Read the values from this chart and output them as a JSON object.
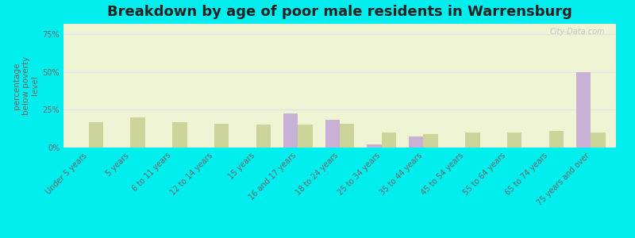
{
  "title": "Breakdown by age of poor male residents in Warrensburg",
  "ylabel": "percentage\nbelow poverty\nlevel",
  "categories": [
    "Under 5 years",
    "5 years",
    "6 to 11 years",
    "12 to 14 years",
    "15 years",
    "16 and 17 years",
    "18 to 24 years",
    "25 to 34 years",
    "35 to 44 years",
    "45 to 54 years",
    "55 to 64 years",
    "65 to 74 years",
    "75 years and over"
  ],
  "warrensburg": [
    0,
    0,
    0,
    0,
    0,
    22.5,
    18.5,
    2.0,
    7.5,
    0,
    0,
    0,
    50.0
  ],
  "illinois": [
    17.0,
    20.0,
    17.0,
    16.0,
    15.0,
    15.0,
    16.0,
    10.0,
    9.0,
    10.0,
    10.0,
    11.0,
    10.0
  ],
  "warrensburg_color": "#c9b0d5",
  "illinois_color": "#cdd49a",
  "background_color": "#eef4d4",
  "bg_outer": "#00eeee",
  "ylim": [
    0,
    82
  ],
  "yticks": [
    0,
    25,
    50,
    75
  ],
  "ytick_labels": [
    "0%",
    "25%",
    "50%",
    "75%"
  ],
  "title_fontsize": 13,
  "ylabel_fontsize": 7.5,
  "tick_fontsize": 7,
  "legend_fontsize": 9,
  "watermark": "City-Data.com"
}
